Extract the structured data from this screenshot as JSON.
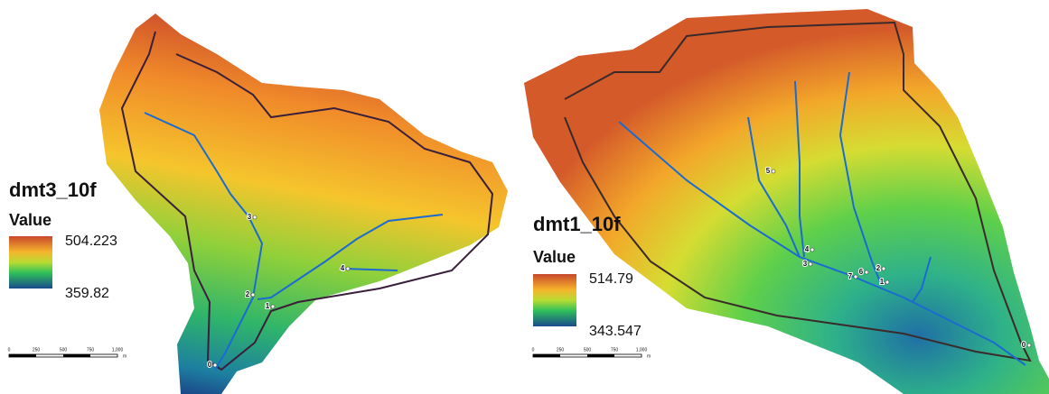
{
  "maps": [
    {
      "legend": {
        "title": "dmt3_10f",
        "field": "Value",
        "high": "504.223",
        "low": "359.82"
      },
      "scale_bar": {
        "labels": [
          "0",
          "250",
          "500",
          "750",
          "1,000"
        ],
        "unit": "m"
      },
      "points": [
        "3",
        "4",
        "2",
        "1",
        "0"
      ]
    },
    {
      "legend": {
        "title": "dmt1_10f",
        "field": "Value",
        "high": "514.79",
        "low": "343.547"
      },
      "scale_bar": {
        "labels": [
          "0",
          "250",
          "500",
          "750",
          "1,000"
        ],
        "unit": "m"
      },
      "points": [
        "5",
        "4",
        "3",
        "7",
        "6",
        "2",
        "1",
        "0"
      ]
    }
  ]
}
